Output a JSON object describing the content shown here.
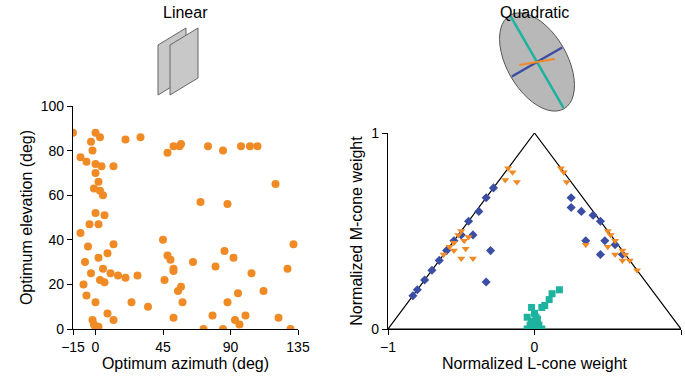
{
  "chart_data": [
    {
      "type": "scatter",
      "title": "Linear",
      "x_label": "Optimum azimuth (deg)",
      "y_label": "Optimum elevation (deg)",
      "xlim": [
        -15,
        135
      ],
      "xticks": [
        {
          "value": -15,
          "label": "−15"
        },
        0,
        45,
        90,
        135
      ],
      "ylim": [
        0,
        100
      ],
      "yticks": [
        0,
        20,
        40,
        60,
        80,
        100
      ],
      "grid": false,
      "series": [
        {
          "color": "#f08a24",
          "marker": "circle",
          "x": [
            -15,
            -10,
            -6,
            -3,
            0,
            3,
            -2,
            0,
            4,
            0,
            2,
            -1,
            3,
            5,
            0,
            6,
            2,
            -4,
            -10,
            12,
            20,
            30,
            48,
            52,
            56,
            57,
            75,
            85,
            97,
            103,
            108,
            120,
            70,
            88,
            -5,
            -7,
            -3,
            2,
            5,
            8,
            12,
            -8,
            -6,
            3,
            6,
            10,
            15,
            20,
            28,
            0,
            -2,
            -1,
            0,
            2,
            8,
            12,
            24,
            35,
            45,
            48,
            50,
            52,
            52,
            46,
            55,
            57,
            58,
            52,
            65,
            80,
            86,
            92,
            88,
            93,
            96,
            100,
            78,
            72,
            85,
            95,
            104,
            112,
            122,
            128,
            132,
            130
          ],
          "values": [
            88,
            77,
            75,
            84,
            88,
            86,
            80,
            74,
            73,
            70,
            66,
            63,
            62,
            60,
            52,
            51,
            47,
            47,
            43,
            73,
            85,
            86,
            79,
            82,
            82,
            83,
            82,
            80,
            82,
            82,
            82,
            65,
            57,
            56,
            37,
            30,
            25,
            32,
            27,
            34,
            38,
            20,
            15,
            22,
            21,
            25,
            24,
            23,
            24,
            12,
            4,
            2,
            0,
            1,
            7,
            4,
            12,
            10,
            40,
            33,
            31,
            27,
            26,
            22,
            17,
            19,
            12,
            5,
            30,
            28,
            35,
            32,
            12,
            4,
            2,
            6,
            6,
            0,
            0,
            16,
            25,
            17,
            5,
            27,
            38,
            0
          ]
        }
      ]
    },
    {
      "type": "scatter",
      "title": "Quadratic",
      "x_label": "Normalized L-cone weight",
      "y_label": "Normalized M-cone weight",
      "xlim": [
        -1,
        1
      ],
      "xticks": [
        {
          "value": -1,
          "label": "−1"
        },
        0,
        1
      ],
      "ylim": [
        0,
        1
      ],
      "yticks": [
        0,
        1
      ],
      "grid": false,
      "series": [
        {
          "color": "#3b4ea3",
          "marker": "diamond",
          "x": [
            -0.83,
            -0.8,
            -0.75,
            -0.7,
            -0.65,
            -0.6,
            -0.55,
            -0.5,
            -0.45,
            -0.38,
            -0.33,
            -0.28,
            -0.42,
            -0.3,
            -0.33,
            0.25,
            0.32,
            0.4,
            0.45,
            0.48,
            0.55,
            0.6,
            0.35,
            0.45,
            0.25
          ],
          "values": [
            0.17,
            0.2,
            0.25,
            0.3,
            0.35,
            0.4,
            0.45,
            0.48,
            0.55,
            0.6,
            0.67,
            0.72,
            0.48,
            0.4,
            0.24,
            0.67,
            0.6,
            0.58,
            0.55,
            0.45,
            0.43,
            0.38,
            0.45,
            0.38,
            0.62
          ]
        },
        {
          "color": "#f08a24",
          "marker": "triangle-down",
          "x": [
            -0.62,
            -0.58,
            -0.55,
            -0.52,
            -0.5,
            -0.48,
            -0.45,
            -0.55,
            -0.47,
            -0.5,
            -0.42,
            -0.18,
            -0.15,
            -0.12,
            -0.2,
            0.18,
            0.2,
            0.22,
            0.5,
            0.52,
            0.55,
            0.6,
            0.62,
            0.65,
            0.7,
            0.55,
            0.5,
            0.35,
            0.6
          ],
          "values": [
            0.38,
            0.42,
            0.44,
            0.48,
            0.5,
            0.45,
            0.47,
            0.4,
            0.41,
            0.36,
            0.36,
            0.82,
            0.8,
            0.75,
            0.76,
            0.82,
            0.8,
            0.75,
            0.5,
            0.48,
            0.45,
            0.4,
            0.38,
            0.35,
            0.3,
            0.38,
            0.42,
            0.43,
            0.35
          ]
        },
        {
          "color": "#1db39e",
          "marker": "square",
          "x": [
            0.17,
            0.12,
            0.1,
            0.07,
            0.05,
            -0.02,
            0,
            -0.05,
            0.02,
            0,
            -0.03,
            0.03,
            0,
            -0.05,
            0.05,
            0.02,
            -0.02,
            0.01
          ],
          "values": [
            0.2,
            0.18,
            0.15,
            0.12,
            0.11,
            0.11,
            0.08,
            0.06,
            0.05,
            0.03,
            0.02,
            0.02,
            0,
            0,
            0,
            0.01,
            0.04,
            0.06
          ]
        }
      ]
    }
  ]
}
